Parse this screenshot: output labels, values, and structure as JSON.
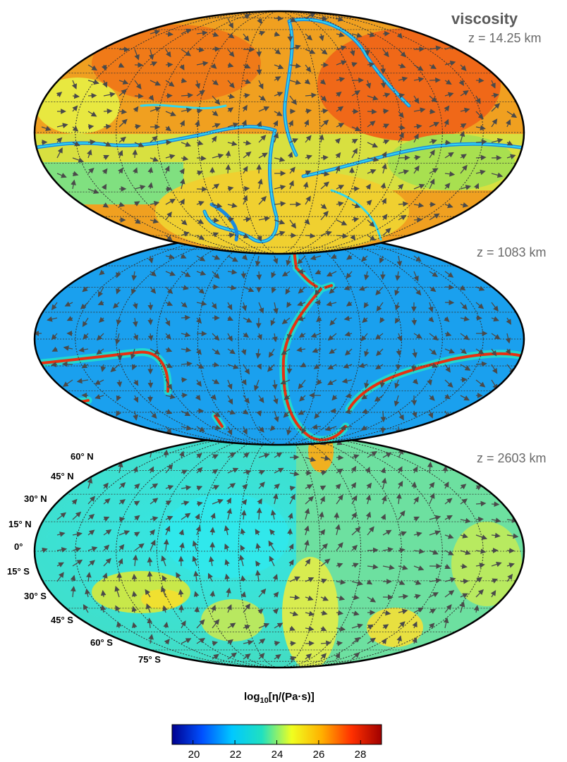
{
  "figure": {
    "title": "viscosity",
    "panels": [
      {
        "z_label": "z = 14.25 km",
        "field": "high viscosity lithosphere"
      },
      {
        "z_label": "z = 1083 km",
        "field": "low viscosity mantle with slabs"
      },
      {
        "z_label": "z = 2603 km",
        "field": "lowermost mantle"
      }
    ],
    "latitude_labels": [
      "60° N",
      "45° N",
      "30° N",
      "15° N",
      "0°",
      "15° S",
      "30° S",
      "45° S",
      "60° S",
      "75° S"
    ],
    "colorbar": {
      "title_prefix": "log",
      "title_sub": "10",
      "title_rest": "[η/(Pa·s)]",
      "ticks": [
        "20",
        "22",
        "24",
        "26",
        "28"
      ],
      "range": [
        19,
        29
      ],
      "colormap": [
        "#00008f",
        "#0050ff",
        "#00c8ff",
        "#20e0c0",
        "#f0ff20",
        "#ffb000",
        "#ff3000",
        "#a00000"
      ]
    }
  }
}
